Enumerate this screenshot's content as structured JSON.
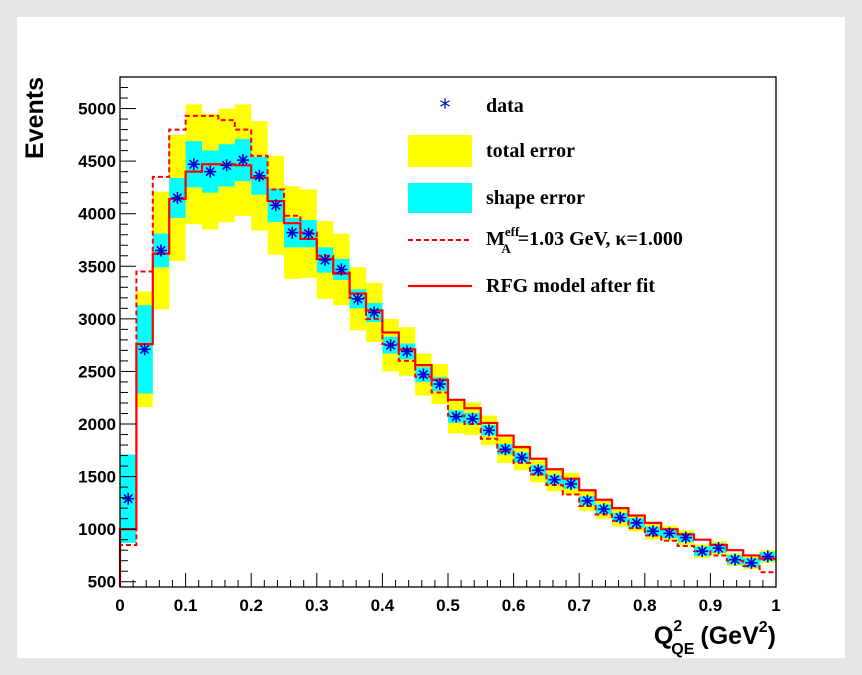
{
  "chart_data": {
    "type": "histogram",
    "ylabel": "Events",
    "xlabel": {
      "main": "Q",
      "sup": "2",
      "sub": "QE",
      "unit_open": "(GeV",
      "unit_sup": "2",
      "unit_close": ")"
    },
    "xlim": [
      0,
      1
    ],
    "ylim": [
      450,
      5300
    ],
    "x_ticks": [
      0,
      0.1,
      0.2,
      0.3,
      0.4,
      0.5,
      0.6,
      0.7,
      0.8,
      0.9,
      1
    ],
    "x_tick_labels": [
      "0",
      "0.1",
      "0.2",
      "0.3",
      "0.4",
      "0.5",
      "0.6",
      "0.7",
      "0.8",
      "0.9",
      "1"
    ],
    "y_ticks": [
      500,
      1000,
      1500,
      2000,
      2500,
      3000,
      3500,
      4000,
      4500,
      5000
    ],
    "y_tick_labels": [
      "500",
      "1000",
      "1500",
      "2000",
      "2500",
      "3000",
      "3500",
      "4000",
      "4500",
      "5000"
    ],
    "bin_width": 0.025,
    "bin_centers": [
      0.0125,
      0.0375,
      0.0625,
      0.0875,
      0.1125,
      0.1375,
      0.1625,
      0.1875,
      0.2125,
      0.2375,
      0.2625,
      0.2875,
      0.3125,
      0.3375,
      0.3625,
      0.3875,
      0.4125,
      0.4375,
      0.4625,
      0.4875,
      0.5125,
      0.5375,
      0.5625,
      0.5875,
      0.6125,
      0.6375,
      0.6625,
      0.6875,
      0.7125,
      0.7375,
      0.7625,
      0.7875,
      0.8125,
      0.8375,
      0.8625,
      0.8875,
      0.9125,
      0.9375,
      0.9625,
      0.9875
    ],
    "data": [
      1290,
      2710,
      3650,
      4150,
      4470,
      4400,
      4460,
      4510,
      4360,
      4080,
      3820,
      3810,
      3560,
      3470,
      3190,
      3060,
      2750,
      2690,
      2470,
      2380,
      2070,
      2050,
      1940,
      1760,
      1680,
      1560,
      1470,
      1430,
      1270,
      1190,
      1110,
      1060,
      980,
      960,
      920,
      790,
      820,
      710,
      680,
      740
    ],
    "total_error": [
      400,
      550,
      560,
      600,
      570,
      550,
      540,
      530,
      520,
      470,
      440,
      420,
      370,
      340,
      300,
      280,
      250,
      230,
      200,
      190,
      160,
      155,
      140,
      130,
      120,
      115,
      110,
      105,
      95,
      90,
      85,
      80,
      75,
      72,
      70,
      65,
      65,
      60,
      60,
      60
    ],
    "shape_error": [
      420,
      420,
      160,
      190,
      220,
      200,
      200,
      200,
      180,
      160,
      140,
      130,
      120,
      100,
      90,
      90,
      80,
      75,
      70,
      65,
      60,
      55,
      50,
      50,
      50,
      50,
      45,
      45,
      45,
      45,
      45,
      45,
      45,
      45,
      45,
      45,
      45,
      45,
      45,
      45
    ],
    "series": [
      {
        "name": "M_A^eff=1.03 GeV, κ=1.000",
        "style": "dashed",
        "color": "#ff0000",
        "values": [
          850,
          3450,
          4350,
          4800,
          4930,
          4930,
          4890,
          4800,
          4550,
          4230,
          3980,
          3820,
          3600,
          3440,
          3200,
          3000,
          2760,
          2600,
          2450,
          2300,
          2080,
          2000,
          1860,
          1740,
          1630,
          1520,
          1420,
          1330,
          1220,
          1140,
          1080,
          1010,
          940,
          890,
          840,
          790,
          750,
          700,
          650,
          590
        ]
      },
      {
        "name": "RFG model after fit",
        "style": "solid",
        "color": "#ff0000",
        "values": [
          1000,
          2760,
          3620,
          4140,
          4400,
          4470,
          4470,
          4460,
          4340,
          4120,
          3910,
          3760,
          3570,
          3430,
          3240,
          3080,
          2870,
          2710,
          2560,
          2420,
          2230,
          2150,
          2010,
          1890,
          1780,
          1670,
          1570,
          1480,
          1370,
          1280,
          1200,
          1130,
          1060,
          1000,
          950,
          900,
          850,
          800,
          750,
          720
        ]
      }
    ],
    "legend": {
      "data": "data",
      "total_error": "total error",
      "shape_error": "shape error",
      "dashed_pre": "M",
      "dashed_sup": "eff",
      "dashed_sub": "A",
      "dashed_post": "=1.03 GeV, κ=1.000",
      "solid": "RFG model after fit"
    },
    "colors": {
      "data": "#0000cc",
      "total_error": "#ffff00",
      "shape_error": "#00ffff",
      "model": "#ff0000"
    }
  }
}
